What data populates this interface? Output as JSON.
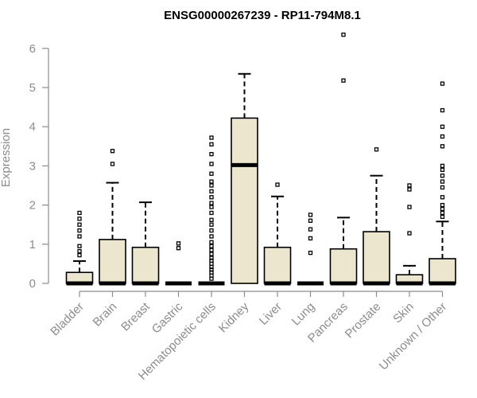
{
  "chart_data": {
    "type": "box",
    "title": "ENSG00000267239 - RP11-794M8.1",
    "ylabel": "Expression",
    "xlabel": "",
    "ylim": [
      0,
      6.4
    ],
    "yticks": [
      0,
      1,
      2,
      3,
      4,
      5,
      6
    ],
    "colors": {
      "box_fill": "#ede6cf",
      "box_stroke": "#000000",
      "axis": "#8c8c8c",
      "label": "#8c8c8c"
    },
    "categories": [
      "Bladder",
      "Brain",
      "Breast",
      "Gastric",
      "Hematopoietic cells",
      "Kidney",
      "Liver",
      "Lung",
      "Pancreas",
      "Prostate",
      "Skin",
      "Unknown / Other"
    ],
    "boxes": [
      {
        "category": "Bladder",
        "q1": 0,
        "median": 0,
        "q3": 0.28,
        "whisker_low": 0,
        "whisker_high": 0.57,
        "outliers": [
          0.72,
          0.82,
          0.95,
          1.2,
          1.35,
          1.5,
          1.65,
          1.8
        ]
      },
      {
        "category": "Brain",
        "q1": 0,
        "median": 0,
        "q3": 1.12,
        "whisker_low": 0,
        "whisker_high": 2.57,
        "outliers": [
          3.05,
          3.38
        ]
      },
      {
        "category": "Breast",
        "q1": 0,
        "median": 0,
        "q3": 0.92,
        "whisker_low": 0,
        "whisker_high": 2.07,
        "outliers": []
      },
      {
        "category": "Gastric",
        "q1": 0,
        "median": 0,
        "q3": 0,
        "whisker_low": 0,
        "whisker_high": 0,
        "outliers": [
          0.9,
          1.02
        ]
      },
      {
        "category": "Hematopoietic cells",
        "q1": 0,
        "median": 0,
        "q3": 0,
        "whisker_low": 0,
        "whisker_high": 0,
        "outliers": [
          0.12,
          0.2,
          0.28,
          0.35,
          0.42,
          0.5,
          0.58,
          0.65,
          0.75,
          0.85,
          0.95,
          1.05,
          1.2,
          1.35,
          1.5,
          1.62,
          1.8,
          1.95,
          2.05,
          2.2,
          2.35,
          2.5,
          2.6,
          2.8,
          3.05,
          3.3,
          3.55,
          3.72
        ]
      },
      {
        "category": "Kidney",
        "q1": 0,
        "median": 3.02,
        "q3": 4.22,
        "whisker_low": 0,
        "whisker_high": 5.35,
        "outliers": []
      },
      {
        "category": "Liver",
        "q1": 0,
        "median": 0,
        "q3": 0.92,
        "whisker_low": 0,
        "whisker_high": 2.22,
        "outliers": [
          2.52
        ]
      },
      {
        "category": "Lung",
        "q1": 0,
        "median": 0,
        "q3": 0,
        "whisker_low": 0,
        "whisker_high": 0,
        "outliers": [
          0.78,
          1.15,
          1.38,
          1.6,
          1.75
        ]
      },
      {
        "category": "Pancreas",
        "q1": 0,
        "median": 0,
        "q3": 0.88,
        "whisker_low": 0,
        "whisker_high": 1.68,
        "outliers": [
          5.18,
          6.35
        ]
      },
      {
        "category": "Prostate",
        "q1": 0,
        "median": 0,
        "q3": 1.32,
        "whisker_low": 0,
        "whisker_high": 2.75,
        "outliers": [
          3.42
        ]
      },
      {
        "category": "Skin",
        "q1": 0,
        "median": 0,
        "q3": 0.22,
        "whisker_low": 0,
        "whisker_high": 0.45,
        "outliers": [
          1.28,
          1.95,
          2.4,
          2.5
        ]
      },
      {
        "category": "Unknown / Other",
        "q1": 0,
        "median": 0,
        "q3": 0.63,
        "whisker_low": 0,
        "whisker_high": 1.58,
        "outliers": [
          1.7,
          1.8,
          1.9,
          2.0,
          2.2,
          2.45,
          2.6,
          2.75,
          2.9,
          3.0,
          3.5,
          3.75,
          4.0,
          4.42,
          5.1
        ]
      }
    ]
  }
}
